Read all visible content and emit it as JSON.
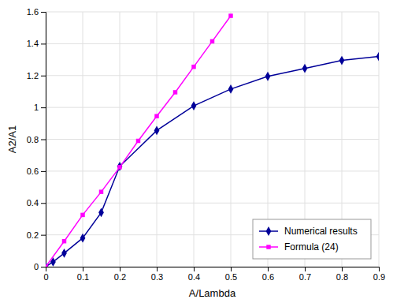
{
  "chart_data": {
    "type": "line",
    "series": [
      {
        "name": "Numerical results",
        "color": "#000099",
        "marker": "diamond",
        "line_style": "solid",
        "x": [
          0.0,
          0.02,
          0.05,
          0.1,
          0.15,
          0.2,
          0.3,
          0.4,
          0.5,
          0.6,
          0.7,
          0.8,
          0.9
        ],
        "values": [
          0.0,
          0.03,
          0.085,
          0.18,
          0.34,
          0.63,
          0.855,
          1.01,
          1.115,
          1.195,
          1.245,
          1.295,
          1.32
        ]
      },
      {
        "name": "Formula (24)",
        "color": "#FF00FF",
        "marker": "square",
        "line_style": "solid",
        "x": [
          0.0,
          0.05,
          0.1,
          0.15,
          0.2,
          0.25,
          0.3,
          0.35,
          0.4,
          0.45,
          0.5
        ],
        "values": [
          0.0,
          0.16,
          0.325,
          0.47,
          0.625,
          0.79,
          0.945,
          1.095,
          1.255,
          1.415,
          1.575
        ]
      }
    ],
    "x_label": "A/Lambda",
    "y_label": "A2/A1",
    "xlim": [
      0,
      0.9
    ],
    "ylim": [
      0,
      1.6
    ],
    "xticks": [
      0,
      0.1,
      0.2,
      0.3,
      0.4,
      0.5,
      0.6,
      0.7,
      0.8,
      0.9
    ],
    "yticks": [
      0,
      0.2,
      0.4,
      0.6,
      0.8,
      1,
      1.2,
      1.4,
      1.6
    ],
    "grid": true,
    "legend": "lower right"
  }
}
